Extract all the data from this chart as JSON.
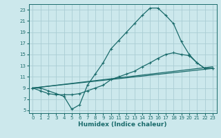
{
  "xlabel": "Humidex (Indice chaleur)",
  "bg_color": "#cce8ec",
  "grid_color": "#aacdd4",
  "line_color": "#1a6b6b",
  "xlim": [
    -0.5,
    23.5
  ],
  "ylim": [
    4.5,
    24
  ],
  "xticks": [
    0,
    1,
    2,
    3,
    4,
    5,
    6,
    7,
    8,
    9,
    10,
    11,
    12,
    13,
    14,
    15,
    16,
    17,
    18,
    19,
    20,
    21,
    22,
    23
  ],
  "yticks": [
    5,
    7,
    9,
    11,
    13,
    15,
    17,
    19,
    21,
    23
  ],
  "series1_x": [
    0,
    1,
    2,
    3,
    4,
    5,
    6,
    7,
    8,
    9,
    10,
    11,
    12,
    13,
    14,
    15,
    16,
    17,
    18,
    19,
    20,
    21,
    22,
    23
  ],
  "series1_y": [
    9.0,
    9.0,
    8.5,
    8.0,
    7.5,
    5.2,
    6.0,
    9.5,
    11.5,
    13.5,
    16.0,
    17.5,
    19.0,
    20.5,
    22.0,
    23.3,
    23.3,
    22.0,
    20.5,
    17.3,
    15.0,
    13.5,
    12.5,
    12.5
  ],
  "series2_x": [
    0,
    1,
    2,
    3,
    4,
    5,
    6,
    7,
    8,
    9,
    10,
    11,
    12,
    13,
    14,
    15,
    16,
    17,
    18,
    19,
    20,
    21,
    22,
    23
  ],
  "series2_y": [
    9.0,
    8.5,
    8.0,
    7.8,
    7.8,
    7.8,
    8.0,
    8.5,
    9.0,
    9.5,
    10.5,
    11.0,
    11.5,
    12.0,
    12.8,
    13.5,
    14.3,
    15.0,
    15.3,
    15.0,
    14.8,
    13.5,
    12.5,
    12.5
  ],
  "series3_x": [
    0,
    23
  ],
  "series3_y": [
    9.0,
    12.5
  ],
  "series4_x": [
    0,
    23
  ],
  "series4_y": [
    9.0,
    12.8
  ],
  "markersize": 3.5,
  "linewidth": 0.9
}
